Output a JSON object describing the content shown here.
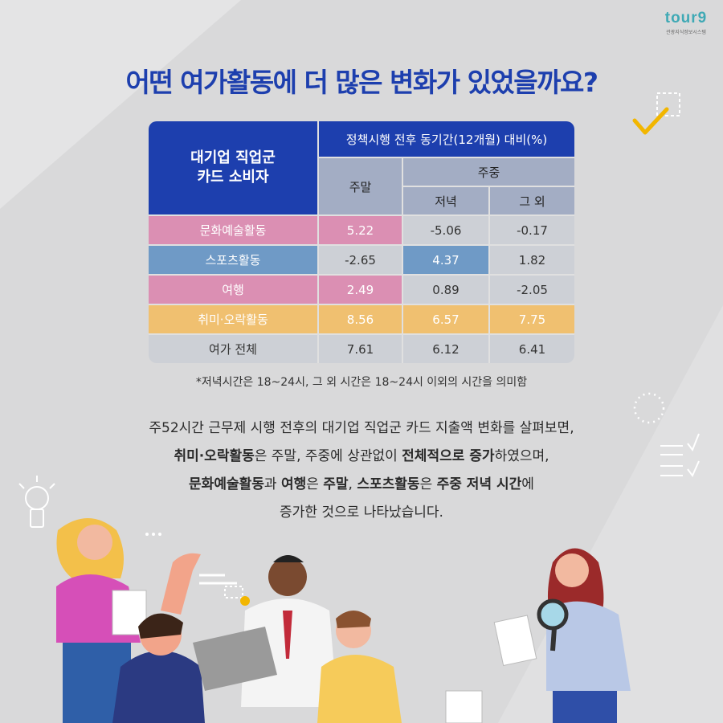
{
  "logo": {
    "word": "tour9",
    "subtitle": "관광지식정보시스템"
  },
  "headline": "어떤 여가활동에 더 많은 변화가 있었을까요?",
  "table": {
    "corner_header": [
      "대기업 직업군",
      "카드 소비자"
    ],
    "period_header": "정책시행 전후 동기간(12개월) 대비(%)",
    "weekend_header": "주말",
    "weekday_header": "주중",
    "evening_header": "저녁",
    "other_header": "그 외",
    "rows": [
      {
        "label": "문화예술활동",
        "weekend": "5.22",
        "evening": "-5.06",
        "other": "-0.17"
      },
      {
        "label": "스포츠활동",
        "weekend": "-2.65",
        "evening": "4.37",
        "other": "1.82"
      },
      {
        "label": "여행",
        "weekend": "2.49",
        "evening": "0.89",
        "other": "-2.05"
      },
      {
        "label": "취미·오락활동",
        "weekend": "8.56",
        "evening": "6.57",
        "other": "7.75"
      },
      {
        "label": "여가 전체",
        "weekend": "7.61",
        "evening": "6.12",
        "other": "6.41"
      }
    ],
    "colors": {
      "header": "#1d3fae",
      "pink": "#db8fb3",
      "blue": "#6f9ac6",
      "yellow": "#f0c070",
      "gray": "#cdd0d6"
    }
  },
  "footnote": "*저녁시간은 18~24시, 그 외 시간은 18~24시 이외의 시간을 의미함",
  "description": {
    "line1": "주52시간 근무제 시행 전후의 대기업 직업군 카드 지출액 변화를 살펴보면,",
    "line2_b1": "취미·오락활동",
    "line2_t1": "은 주말, 주중에 상관없이 ",
    "line2_b2": "전체적으로 증가",
    "line2_t2": "하였으며,",
    "line3_b1": "문화예술활동",
    "line3_t1": "과 ",
    "line3_b2": "여행",
    "line3_t2": "은 ",
    "line3_b3": "주말",
    "line3_t3": ", ",
    "line3_b4": "스포츠활동",
    "line3_t4": "은 ",
    "line3_b5": "주중 저녁 시간",
    "line3_t5": "에",
    "line4": "증가한 것으로 나타났습니다."
  }
}
